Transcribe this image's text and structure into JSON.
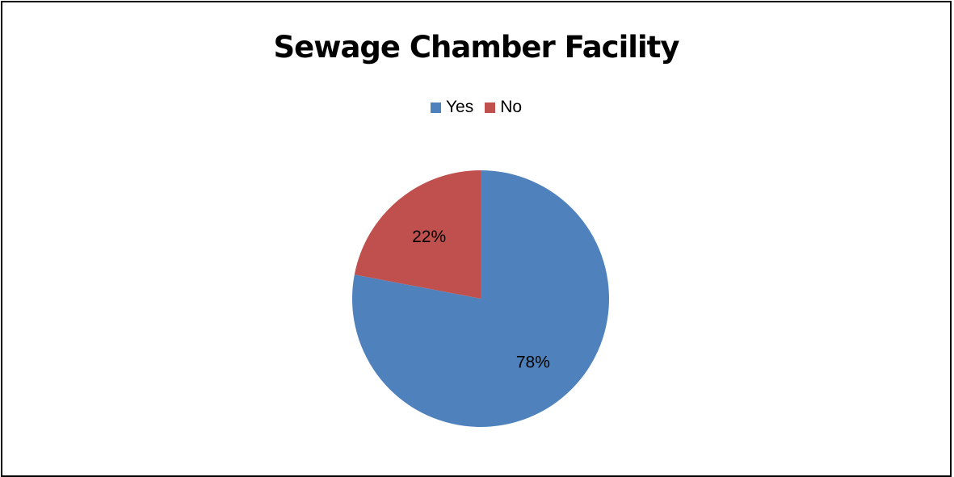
{
  "chart_data": {
    "type": "pie",
    "title": "Sewage Chamber Facility",
    "categories": [
      "Yes",
      "No"
    ],
    "values": [
      78,
      22
    ],
    "data_labels": [
      "78%",
      "22%"
    ],
    "colors": [
      "#4f81bd",
      "#c0504d"
    ],
    "legend_position": "top",
    "legend": [
      {
        "label": "Yes",
        "color": "#4f81bd"
      },
      {
        "label": "No",
        "color": "#c0504d"
      }
    ]
  }
}
